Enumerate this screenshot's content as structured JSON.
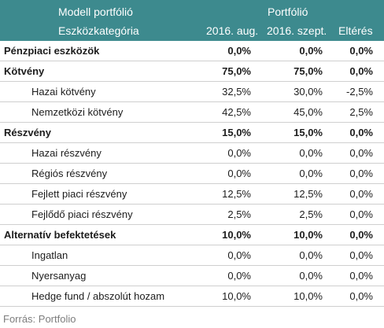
{
  "header": {
    "model_label": "Modell portfólió",
    "portfolio_label": "Portfólió",
    "category_label": "Eszközkategória",
    "col_aug": "2016. aug.",
    "col_sep": "2016. szept.",
    "col_diff": "Eltérés"
  },
  "rows": [
    {
      "label": "Pénzpiaci eszközök",
      "aug": "0,0%",
      "sep": "0,0%",
      "diff": "0,0%",
      "bold": true
    },
    {
      "label": "Kötvény",
      "aug": "75,0%",
      "sep": "75,0%",
      "diff": "0,0%",
      "bold": true
    },
    {
      "label": "Hazai kötvény",
      "aug": "32,5%",
      "sep": "30,0%",
      "diff": "-2,5%",
      "bold": false
    },
    {
      "label": "Nemzetközi kötvény",
      "aug": "42,5%",
      "sep": "45,0%",
      "diff": "2,5%",
      "bold": false
    },
    {
      "label": "Részvény",
      "aug": "15,0%",
      "sep": "15,0%",
      "diff": "0,0%",
      "bold": true
    },
    {
      "label": "Hazai részvény",
      "aug": "0,0%",
      "sep": "0,0%",
      "diff": "0,0%",
      "bold": false
    },
    {
      "label": "Régiós részvény",
      "aug": "0,0%",
      "sep": "0,0%",
      "diff": "0,0%",
      "bold": false
    },
    {
      "label": "Fejlett piaci részvény",
      "aug": "12,5%",
      "sep": "12,5%",
      "diff": "0,0%",
      "bold": false
    },
    {
      "label": "Fejlődő piaci részvény",
      "aug": "2,5%",
      "sep": "2,5%",
      "diff": "0,0%",
      "bold": false
    },
    {
      "label": "Alternatív befektetések",
      "aug": "10,0%",
      "sep": "10,0%",
      "diff": "0,0%",
      "bold": true
    },
    {
      "label": "Ingatlan",
      "aug": "0,0%",
      "sep": "0,0%",
      "diff": "0,0%",
      "bold": false
    },
    {
      "label": "Nyersanyag",
      "aug": "0,0%",
      "sep": "0,0%",
      "diff": "0,0%",
      "bold": false
    },
    {
      "label": "Hedge fund / abszolút hozam",
      "aug": "10,0%",
      "sep": "10,0%",
      "diff": "0,0%",
      "bold": false
    }
  ],
  "source": "Forrás: Portfolio",
  "colors": {
    "header_bg": "#3d8a8e",
    "header_text": "#ffffff",
    "source_text": "#7d7d7d"
  }
}
